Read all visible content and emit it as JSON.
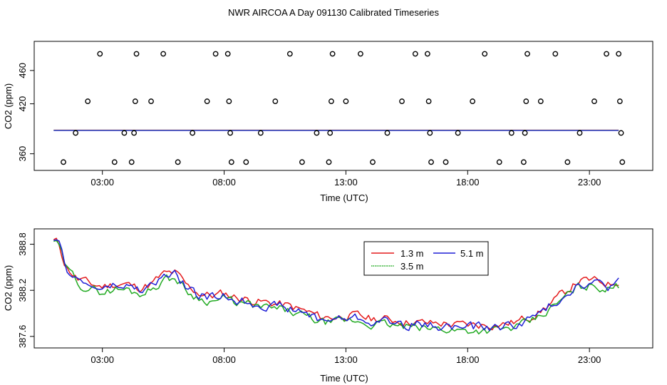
{
  "title": "NWR AIRCOA A  Day 091130  Calibrated Timeseries",
  "colors": {
    "red": "#e41a1c",
    "green": "#22aa22",
    "blue": "#1f1fd6",
    "axis": "#000000"
  },
  "chart_data": [
    {
      "type": "scatter",
      "title": "",
      "xlabel": "Time (UTC)",
      "ylabel": "CO2 (ppm)",
      "xlim": [
        0.2,
        25.6
      ],
      "ylim": [
        340,
        495
      ],
      "xticks": [
        3,
        8,
        13,
        18,
        23
      ],
      "xtick_labels": [
        "03:00",
        "08:00",
        "13:00",
        "18:00",
        "23:00"
      ],
      "yticks": [
        360,
        420,
        460
      ],
      "ytick_labels": [
        "360",
        "420",
        "460"
      ],
      "calibration_points": [
        {
          "x": 1.4,
          "y": 350
        },
        {
          "x": 1.9,
          "y": 385
        },
        {
          "x": 2.4,
          "y": 423
        },
        {
          "x": 2.9,
          "y": 480
        },
        {
          "x": 3.5,
          "y": 350
        },
        {
          "x": 3.9,
          "y": 385
        },
        {
          "x": 4.2,
          "y": 350
        },
        {
          "x": 4.3,
          "y": 385
        },
        {
          "x": 4.35,
          "y": 423
        },
        {
          "x": 4.4,
          "y": 480
        },
        {
          "x": 5.0,
          "y": 423
        },
        {
          "x": 5.5,
          "y": 480
        },
        {
          "x": 6.1,
          "y": 350
        },
        {
          "x": 6.7,
          "y": 385
        },
        {
          "x": 7.3,
          "y": 423
        },
        {
          "x": 7.65,
          "y": 480
        },
        {
          "x": 8.15,
          "y": 480
        },
        {
          "x": 8.2,
          "y": 423
        },
        {
          "x": 8.25,
          "y": 385
        },
        {
          "x": 8.3,
          "y": 350
        },
        {
          "x": 8.9,
          "y": 350
        },
        {
          "x": 9.5,
          "y": 385
        },
        {
          "x": 10.1,
          "y": 423
        },
        {
          "x": 10.7,
          "y": 480
        },
        {
          "x": 11.2,
          "y": 350
        },
        {
          "x": 11.8,
          "y": 385
        },
        {
          "x": 12.3,
          "y": 350
        },
        {
          "x": 12.35,
          "y": 385
        },
        {
          "x": 12.4,
          "y": 423
        },
        {
          "x": 12.45,
          "y": 480
        },
        {
          "x": 13.0,
          "y": 423
        },
        {
          "x": 13.6,
          "y": 480
        },
        {
          "x": 14.1,
          "y": 350
        },
        {
          "x": 14.7,
          "y": 385
        },
        {
          "x": 15.3,
          "y": 423
        },
        {
          "x": 15.85,
          "y": 480
        },
        {
          "x": 16.35,
          "y": 480
        },
        {
          "x": 16.4,
          "y": 423
        },
        {
          "x": 16.45,
          "y": 385
        },
        {
          "x": 16.5,
          "y": 350
        },
        {
          "x": 17.1,
          "y": 350
        },
        {
          "x": 17.6,
          "y": 385
        },
        {
          "x": 18.2,
          "y": 423
        },
        {
          "x": 18.7,
          "y": 480
        },
        {
          "x": 19.3,
          "y": 350
        },
        {
          "x": 19.8,
          "y": 385
        },
        {
          "x": 20.3,
          "y": 350
        },
        {
          "x": 20.35,
          "y": 385
        },
        {
          "x": 20.4,
          "y": 423
        },
        {
          "x": 20.45,
          "y": 480
        },
        {
          "x": 21.0,
          "y": 423
        },
        {
          "x": 21.6,
          "y": 480
        },
        {
          "x": 22.1,
          "y": 350
        },
        {
          "x": 22.6,
          "y": 385
        },
        {
          "x": 23.2,
          "y": 423
        },
        {
          "x": 23.7,
          "y": 480
        },
        {
          "x": 24.2,
          "y": 480
        },
        {
          "x": 24.25,
          "y": 423
        },
        {
          "x": 24.3,
          "y": 385
        },
        {
          "x": 24.35,
          "y": 350
        }
      ],
      "baseline": {
        "x_start": 1.0,
        "x_end": 24.2,
        "y": 388.2
      }
    },
    {
      "type": "line",
      "title": "",
      "xlabel": "Time (UTC)",
      "ylabel": "CO2 (ppm)",
      "xlim": [
        0.2,
        25.6
      ],
      "ylim": [
        387.45,
        389.0
      ],
      "xticks": [
        3,
        8,
        13,
        18,
        23
      ],
      "xtick_labels": [
        "03:00",
        "08:00",
        "13:00",
        "18:00",
        "23:00"
      ],
      "yticks": [
        387.6,
        388.2,
        388.8
      ],
      "ytick_labels": [
        "387.6",
        "388.2",
        "388.8"
      ],
      "legend": {
        "position": "top-center",
        "entries": [
          {
            "label": "1.3 m",
            "color": "#e41a1c"
          },
          {
            "label": "5.1 m",
            "color": "#1f1fd6"
          },
          {
            "label": "3.5 m",
            "color": "#22aa22"
          }
        ]
      },
      "anchors": {
        "x": [
          1.0,
          1.2,
          1.5,
          2.0,
          2.5,
          3.0,
          3.5,
          4.0,
          4.5,
          5.0,
          5.5,
          6.0,
          6.5,
          7.0,
          7.5,
          8.0,
          8.5,
          9.0,
          9.5,
          10.0,
          10.5,
          11.0,
          11.5,
          12.0,
          12.5,
          13.0,
          13.5,
          14.0,
          14.5,
          15.0,
          15.5,
          16.0,
          16.5,
          17.0,
          17.5,
          18.0,
          18.5,
          19.0,
          19.5,
          20.0,
          20.5,
          21.0,
          21.5,
          22.0,
          22.5,
          23.0,
          23.5,
          23.8,
          24.2
        ],
        "y": [
          388.85,
          388.8,
          388.5,
          388.33,
          388.25,
          388.22,
          388.25,
          388.25,
          388.2,
          388.25,
          388.38,
          388.4,
          388.22,
          388.13,
          388.1,
          388.13,
          388.08,
          388.05,
          388.02,
          388.0,
          387.98,
          387.93,
          387.88,
          387.82,
          387.82,
          387.84,
          387.84,
          387.8,
          387.8,
          387.78,
          387.76,
          387.75,
          387.74,
          387.74,
          387.72,
          387.72,
          387.72,
          387.72,
          387.73,
          387.76,
          387.82,
          387.9,
          388.02,
          388.15,
          388.28,
          388.3,
          388.28,
          388.25,
          388.3
        ]
      },
      "series": [
        {
          "name": "1.3 m",
          "color": "#e41a1c",
          "offset": 0.03,
          "noise_amp": 0.05,
          "seed": 11
        },
        {
          "name": "3.5 m",
          "color": "#22aa22",
          "offset": -0.04,
          "noise_amp": 0.05,
          "seed": 29
        },
        {
          "name": "5.1 m",
          "color": "#1f1fd6",
          "offset": 0.0,
          "noise_amp": 0.055,
          "seed": 47
        }
      ]
    }
  ]
}
